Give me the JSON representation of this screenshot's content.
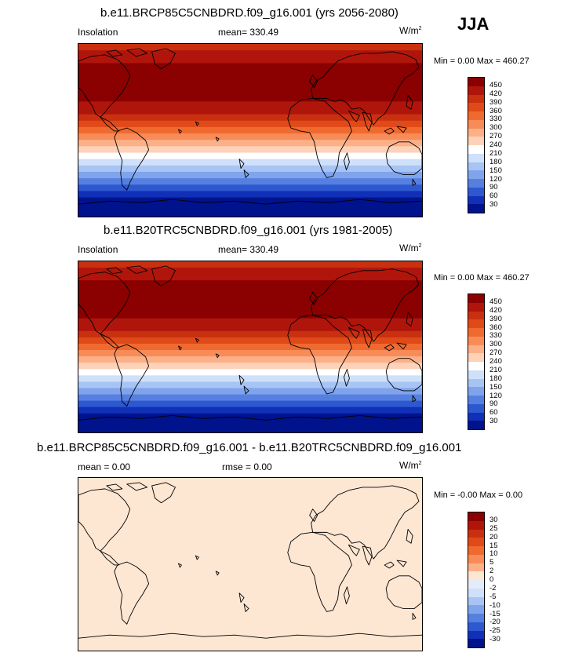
{
  "season": "JJA",
  "panels": [
    {
      "title": "b.e11.BRCP85C5CNBDRD.f09_g16.001 (yrs 2056-2080)",
      "left_label": "Insolation",
      "center_label": "mean= 330.49",
      "units": "W/m",
      "units_exp": "2",
      "minmax": "Min =  0.00 Max = 460.27"
    },
    {
      "title": "b.e11.B20TRC5CNBDRD.f09_g16.001 (yrs 1981-2005)",
      "left_label": "Insolation",
      "center_label": "mean= 330.49",
      "units": "W/m",
      "units_exp": "2",
      "minmax": "Min =  0.00 Max = 460.27"
    },
    {
      "title": "b.e11.BRCP85C5CNBDRD.f09_g16.001 - b.e11.B20TRC5CNBDRD.f09_g16.001",
      "left_label": "mean =   0.00",
      "center_label": "rmse =   0.00",
      "units": "W/m",
      "units_exp": "2",
      "minmax": "Min = -0.00 Max =  0.00"
    }
  ],
  "colorbar_abs": {
    "labels": [
      "450",
      "420",
      "390",
      "360",
      "330",
      "300",
      "270",
      "240",
      "210",
      "180",
      "150",
      "120",
      "90",
      "60",
      "30"
    ],
    "colors": [
      "#8b0000",
      "#b0150c",
      "#c83010",
      "#e04a18",
      "#f06a30",
      "#f88c58",
      "#fbb088",
      "#fdd2b8",
      "#ffffff",
      "#cfe0fa",
      "#a8c4f4",
      "#80a4ec",
      "#5680e0",
      "#2e58d0",
      "#1030b8",
      "#00128c"
    ]
  },
  "colorbar_diff": {
    "labels": [
      "30",
      "25",
      "20",
      "15",
      "10",
      "5",
      "2",
      "0",
      "-2",
      "-5",
      "-10",
      "-15",
      "-20",
      "-25",
      "-30"
    ],
    "colors": [
      "#8b0000",
      "#b0150c",
      "#c83010",
      "#e04a18",
      "#f06a30",
      "#f88c58",
      "#fbb088",
      "#fde6d2",
      "#e4ecfa",
      "#cfe0fa",
      "#a8c4f4",
      "#80a4ec",
      "#5680e0",
      "#2e58d0",
      "#1030b8",
      "#00128c"
    ]
  },
  "colors": {
    "diff_fill": "#fde6d2",
    "coast": "#000000"
  }
}
